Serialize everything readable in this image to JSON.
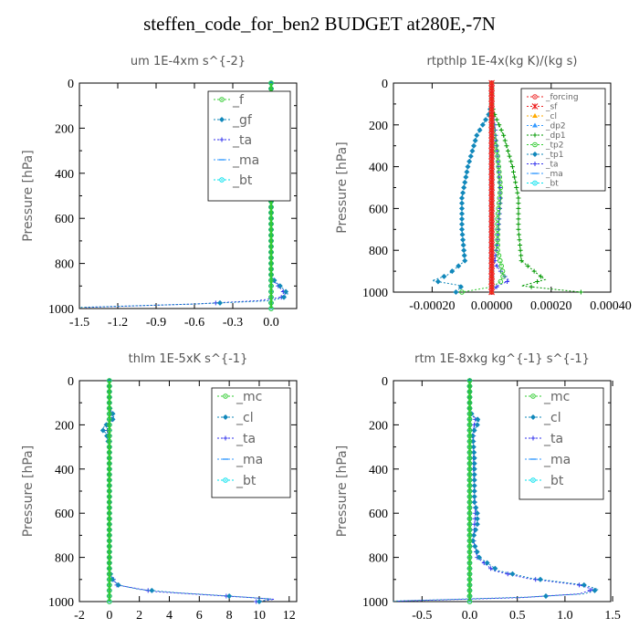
{
  "title": "steffen_code_for_ben2  BUDGET at280E,-7N",
  "colors": {
    "green": "#33cc33",
    "dgreen": "#009900",
    "teal": "#1188bb",
    "blue": "#3333ee",
    "cyan": "#00e0ee",
    "red": "#ee2222",
    "orange": "#ffaa00",
    "sky": "#3399ff",
    "axis": "#000000",
    "text": "#555555"
  },
  "chart_data": [
    {
      "type": "line",
      "title": "um   1E-4xm s^{-2}",
      "ylabel": "Pressure [hPa]",
      "ylim": [
        1000,
        0
      ],
      "xlim": [
        -1.5,
        0.2
      ],
      "xticks": [
        "-1.5",
        "-1.2",
        "-0.9",
        "-0.6",
        "-0.3",
        "0.0"
      ],
      "xtick_values": [
        -1.5,
        -1.2,
        -0.9,
        -0.6,
        -0.3,
        0.0
      ],
      "yticks": [
        "0",
        "200",
        "400",
        "600",
        "800",
        "1000"
      ],
      "legend": {
        "position": "top-right",
        "font_size": 14
      },
      "series": [
        {
          "name": "_f",
          "color_key": "green",
          "marker": "circle",
          "points": [
            [
              0,
              0
            ],
            [
              0,
              200
            ],
            [
              0,
              400
            ],
            [
              0,
              600
            ],
            [
              0,
              800
            ],
            [
              0,
              1000
            ]
          ]
        },
        {
          "name": "_gf",
          "color_key": "teal",
          "marker": "diamond",
          "points": [
            [
              0,
              0
            ],
            [
              0,
              100
            ],
            [
              0.03,
              150
            ],
            [
              0.05,
              175
            ],
            [
              0.03,
              200
            ],
            [
              0,
              240
            ],
            [
              0,
              400
            ],
            [
              0,
              600
            ],
            [
              0,
              800
            ],
            [
              0,
              860
            ],
            [
              0.05,
              890
            ],
            [
              0.1,
              915
            ],
            [
              0.13,
              935
            ],
            [
              0.1,
              950
            ],
            [
              0,
              965
            ],
            [
              -0.6,
              980
            ],
            [
              -1.5,
              995
            ]
          ]
        },
        {
          "name": "_ta",
          "color_key": "blue",
          "marker": "plus",
          "points": [
            [
              0,
              0
            ],
            [
              0,
              100
            ],
            [
              0.02,
              175
            ],
            [
              0,
              240
            ],
            [
              0,
              600
            ],
            [
              0,
              860
            ],
            [
              0.04,
              890
            ],
            [
              0.08,
              915
            ],
            [
              0.11,
              935
            ],
            [
              0.08,
              950
            ],
            [
              -0.1,
              965
            ],
            [
              -0.6,
              980
            ],
            [
              -1.45,
              995
            ]
          ]
        },
        {
          "name": "_ma",
          "color_key": "sky",
          "marker": "dash",
          "points": [
            [
              0,
              0
            ],
            [
              0,
              1000
            ]
          ]
        },
        {
          "name": "_bt",
          "color_key": "cyan",
          "marker": "circle",
          "points": [
            [
              0,
              0
            ],
            [
              0,
              1000
            ]
          ]
        }
      ]
    },
    {
      "type": "line",
      "title": "rtpthlp   1E-4x(kg K)/(kg s)",
      "ylabel": "Pressure [hPa]",
      "ylim": [
        1000,
        0
      ],
      "xlim": [
        -0.00033,
        0.0004
      ],
      "xticks": [
        "-0.00020",
        "0.00000",
        "0.00020",
        "0.00040"
      ],
      "xtick_values": [
        -0.0002,
        0,
        0.0002,
        0.0004
      ],
      "yticks": [
        "0",
        "200",
        "400",
        "600",
        "800",
        "1000"
      ],
      "legend": {
        "position": "top-right",
        "font_size": 9
      },
      "series": [
        {
          "name": "_forcing",
          "color_key": "red",
          "marker": "circle",
          "points": [
            [
              0,
              0
            ],
            [
              0,
              1000
            ]
          ]
        },
        {
          "name": "_sf",
          "color_key": "red",
          "marker": "star",
          "points": [
            [
              0,
              0
            ],
            [
              0,
              1000
            ]
          ]
        },
        {
          "name": "_cl",
          "color_key": "orange",
          "marker": "triangle",
          "points": [
            [
              0,
              0
            ],
            [
              0,
              1000
            ]
          ]
        },
        {
          "name": "_dp2",
          "color_key": "sky",
          "marker": "triangle",
          "points": [
            [
              0,
              0
            ],
            [
              0,
              1000
            ]
          ]
        },
        {
          "name": "_dp1",
          "color_key": "dgreen",
          "marker": "plus",
          "points": [
            [
              0,
              0
            ],
            [
              0,
              100
            ],
            [
              1e-05,
              150
            ],
            [
              4e-05,
              250
            ],
            [
              7e-05,
              400
            ],
            [
              9e-05,
              550
            ],
            [
              9e-05,
              700
            ],
            [
              0.0001,
              850
            ],
            [
              0.00016,
              920
            ],
            [
              0.00018,
              940
            ],
            [
              0.0001,
              970
            ],
            [
              0.0003,
              1000
            ]
          ]
        },
        {
          "name": "_tp2",
          "color_key": "green",
          "marker": "circle",
          "points": [
            [
              0,
              0
            ],
            [
              0,
              100
            ],
            [
              0,
              180
            ],
            [
              2e-05,
              350
            ],
            [
              3e-05,
              500
            ],
            [
              2e-05,
              650
            ],
            [
              2e-05,
              800
            ],
            [
              4e-05,
              920
            ],
            [
              3e-05,
              950
            ],
            [
              0,
              975
            ],
            [
              -0.0001,
              1000
            ]
          ]
        },
        {
          "name": "_tp1",
          "color_key": "teal",
          "marker": "diamond",
          "points": [
            [
              0,
              0
            ],
            [
              0,
              100
            ],
            [
              -1e-05,
              150
            ],
            [
              -5e-05,
              250
            ],
            [
              -8e-05,
              400
            ],
            [
              -0.0001,
              550
            ],
            [
              -0.0001,
              700
            ],
            [
              -9e-05,
              850
            ],
            [
              -0.00015,
              920
            ],
            [
              -0.0002,
              945
            ],
            [
              -0.0001,
              970
            ],
            [
              -0.00012,
              1000
            ]
          ]
        },
        {
          "name": "_ta",
          "color_key": "blue",
          "marker": "plus",
          "points": [
            [
              0,
              0
            ],
            [
              0,
              100
            ],
            [
              1e-05,
              200
            ],
            [
              2e-05,
              350
            ],
            [
              3e-05,
              550
            ],
            [
              2e-05,
              750
            ],
            [
              1e-05,
              860
            ],
            [
              4e-05,
              920
            ],
            [
              6e-05,
              945
            ],
            [
              2e-05,
              970
            ],
            [
              0,
              1000
            ]
          ]
        },
        {
          "name": "_ma",
          "color_key": "sky",
          "marker": "dash",
          "points": [
            [
              0,
              0
            ],
            [
              0,
              1000
            ]
          ]
        },
        {
          "name": "_bt",
          "color_key": "cyan",
          "marker": "circle",
          "points": [
            [
              0,
              0
            ],
            [
              0,
              1000
            ]
          ]
        }
      ]
    },
    {
      "type": "line",
      "title": "thlm   1E-5xK s^{-1}",
      "ylabel": "Pressure [hPa]",
      "ylim": [
        1000,
        0
      ],
      "xlim": [
        -2,
        12.5
      ],
      "xticks": [
        "-2",
        "0",
        "2",
        "4",
        "6",
        "8",
        "10",
        "12"
      ],
      "xtick_values": [
        -2,
        0,
        2,
        4,
        6,
        8,
        10,
        12
      ],
      "yticks": [
        "0",
        "200",
        "400",
        "600",
        "800",
        "1000"
      ],
      "legend": {
        "position": "top-right",
        "font_size": 14
      },
      "series": [
        {
          "name": "_mc",
          "color_key": "green",
          "marker": "circle",
          "points": [
            [
              0,
              0
            ],
            [
              0,
              1000
            ]
          ]
        },
        {
          "name": "_cl",
          "color_key": "teal",
          "marker": "diamond",
          "points": [
            [
              0,
              0
            ],
            [
              0,
              120
            ],
            [
              0.3,
              160
            ],
            [
              0.2,
              180
            ],
            [
              -0.3,
              205
            ],
            [
              -0.5,
              220
            ],
            [
              -0.2,
              240
            ],
            [
              0,
              300
            ],
            [
              0,
              860
            ],
            [
              0.2,
              900
            ],
            [
              0.6,
              925
            ],
            [
              2,
              945
            ],
            [
              4.5,
              960
            ],
            [
              8,
              975
            ],
            [
              10.8,
              988
            ],
            [
              10,
              1000
            ]
          ]
        },
        {
          "name": "_ta",
          "color_key": "blue",
          "marker": "plus",
          "points": [
            [
              0,
              0
            ],
            [
              0,
              120
            ],
            [
              0.2,
              170
            ],
            [
              -0.2,
              210
            ],
            [
              0,
              260
            ],
            [
              0,
              870
            ],
            [
              0.5,
              925
            ],
            [
              3,
              955
            ],
            [
              9,
              980
            ],
            [
              11,
              990
            ],
            [
              9.8,
              1000
            ]
          ]
        },
        {
          "name": "_ma",
          "color_key": "sky",
          "marker": "dash",
          "points": [
            [
              0,
              0
            ],
            [
              0,
              1000
            ]
          ]
        },
        {
          "name": "_bt",
          "color_key": "cyan",
          "marker": "circle",
          "points": [
            [
              0,
              0
            ],
            [
              0,
              1000
            ]
          ]
        }
      ]
    },
    {
      "type": "line",
      "title": "rtm   1E-8xkg kg^{-1} s^{-1}",
      "ylabel": "Pressure [hPa]",
      "ylim": [
        1000,
        0
      ],
      "xlim": [
        -0.8,
        1.48
      ],
      "xticks": [
        "-0.5",
        "0.0",
        "0.5",
        "1.0",
        "1.5"
      ],
      "xtick_values": [
        -0.5,
        0,
        0.5,
        1.0,
        1.5
      ],
      "yticks": [
        "0",
        "200",
        "400",
        "600",
        "800",
        "1000"
      ],
      "legend": {
        "position": "top-right",
        "font_size": 14
      },
      "series": [
        {
          "name": "_mc",
          "color_key": "green",
          "marker": "circle",
          "points": [
            [
              0,
              0
            ],
            [
              0,
              1000
            ]
          ]
        },
        {
          "name": "_cl",
          "color_key": "teal",
          "marker": "diamond",
          "points": [
            [
              0,
              0
            ],
            [
              0,
              140
            ],
            [
              0.05,
              165
            ],
            [
              0.1,
              180
            ],
            [
              0.08,
              200
            ],
            [
              0.03,
              240
            ],
            [
              0.05,
              350
            ],
            [
              0.05,
              450
            ],
            [
              0.05,
              550
            ],
            [
              0.08,
              600
            ],
            [
              0.08,
              650
            ],
            [
              0.03,
              720
            ],
            [
              0.1,
              800
            ],
            [
              0.3,
              860
            ],
            [
              0.65,
              895
            ],
            [
              1.2,
              925
            ],
            [
              1.35,
              945
            ],
            [
              1.2,
              965
            ],
            [
              0.6,
              980
            ],
            [
              -0.8,
              998
            ]
          ]
        },
        {
          "name": "_ta",
          "color_key": "blue",
          "marker": "plus",
          "points": [
            [
              0,
              0
            ],
            [
              0,
              140
            ],
            [
              0.06,
              175
            ],
            [
              0.04,
              220
            ],
            [
              0.04,
              400
            ],
            [
              0.06,
              600
            ],
            [
              0.04,
              720
            ],
            [
              0.08,
              800
            ],
            [
              0.25,
              860
            ],
            [
              0.6,
              895
            ],
            [
              1.15,
              925
            ],
            [
              1.3,
              945
            ],
            [
              1.15,
              965
            ],
            [
              0.55,
              982
            ],
            [
              -0.75,
              998
            ]
          ]
        },
        {
          "name": "_ma",
          "color_key": "sky",
          "marker": "dash",
          "points": [
            [
              0,
              0
            ],
            [
              0,
              1000
            ]
          ]
        },
        {
          "name": "_bt",
          "color_key": "cyan",
          "marker": "circle",
          "points": [
            [
              0,
              0
            ],
            [
              0,
              1000
            ]
          ]
        }
      ]
    }
  ]
}
